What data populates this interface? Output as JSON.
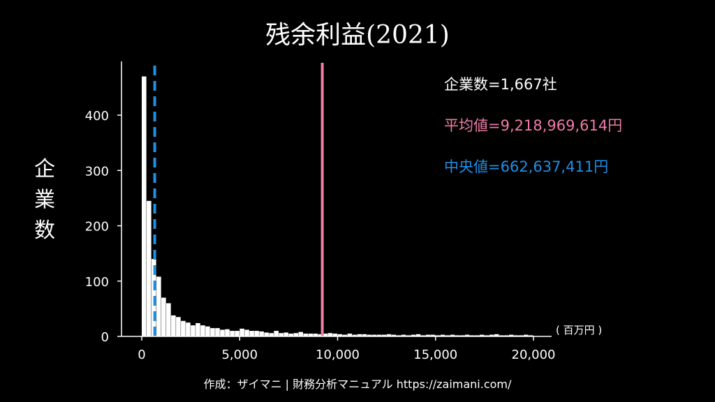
{
  "chart_data": {
    "type": "bar",
    "title": "残余利益(2021)",
    "xlabel": "",
    "ylabel": "企業数",
    "x_unit": "( 百万円 )",
    "xlim": [
      -1000,
      21000
    ],
    "ylim": [
      0,
      490
    ],
    "x_ticks": [
      0,
      5000,
      10000,
      15000,
      20000
    ],
    "x_tick_labels": [
      "0",
      "5,000",
      "10,000",
      "15,000",
      "20,000"
    ],
    "y_ticks": [
      0,
      100,
      200,
      300,
      400
    ],
    "y_tick_labels": [
      "0",
      "100",
      "200",
      "300",
      "400"
    ],
    "bin_width": 250,
    "bin_start": 0,
    "counts": [
      470,
      245,
      140,
      108,
      70,
      60,
      38,
      35,
      28,
      25,
      20,
      24,
      20,
      18,
      15,
      15,
      12,
      13,
      10,
      10,
      14,
      12,
      10,
      10,
      9,
      7,
      6,
      10,
      6,
      7,
      5,
      6,
      8,
      5,
      5,
      5,
      4,
      5,
      6,
      5,
      4,
      3,
      5,
      3,
      4,
      4,
      3,
      3,
      3,
      3,
      4,
      3,
      2,
      3,
      2,
      3,
      4,
      2,
      3,
      3,
      2,
      3,
      2,
      3,
      2,
      2,
      3,
      2,
      2,
      3,
      2,
      3,
      4,
      2,
      2,
      3,
      2,
      2,
      3,
      2
    ],
    "mean": 9218.969614,
    "median": 662.637411,
    "colors": {
      "bars": "#ffffff",
      "mean": "#f07ca8",
      "median": "#1e90e6"
    }
  },
  "stats": {
    "count": "企業数=1,667社",
    "mean": "平均値=9,218,969,614円",
    "median": "中央値=662,637,411円"
  },
  "footer": {
    "credit": "作成：ザイマニ | 財務分析マニュアル https://zaimani.com/"
  }
}
